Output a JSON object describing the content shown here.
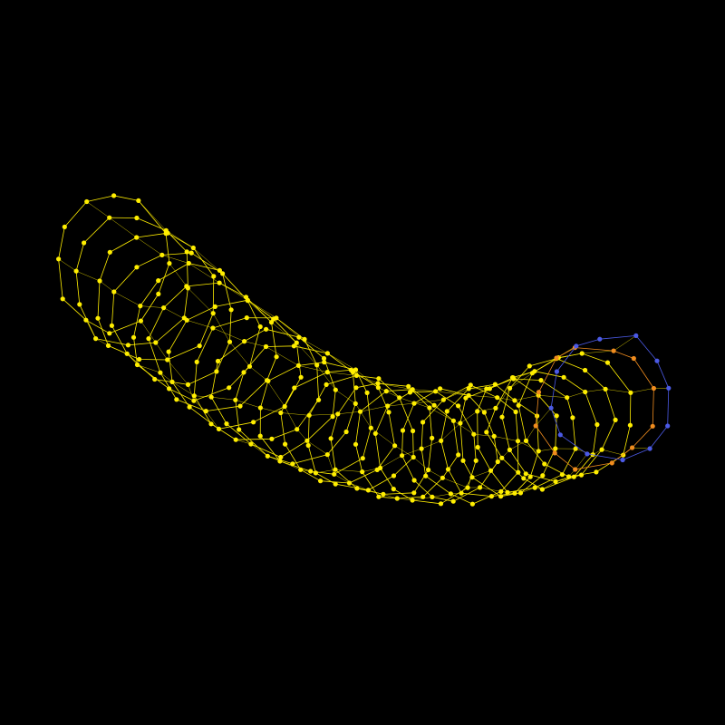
{
  "figure": {
    "background": "#000000",
    "rings": 26,
    "points_per_ring": 12,
    "palette": {
      "main": "#FFEE00",
      "accent_orange": "#F08C1E",
      "accent_blue": "#4B5AE6"
    }
  }
}
